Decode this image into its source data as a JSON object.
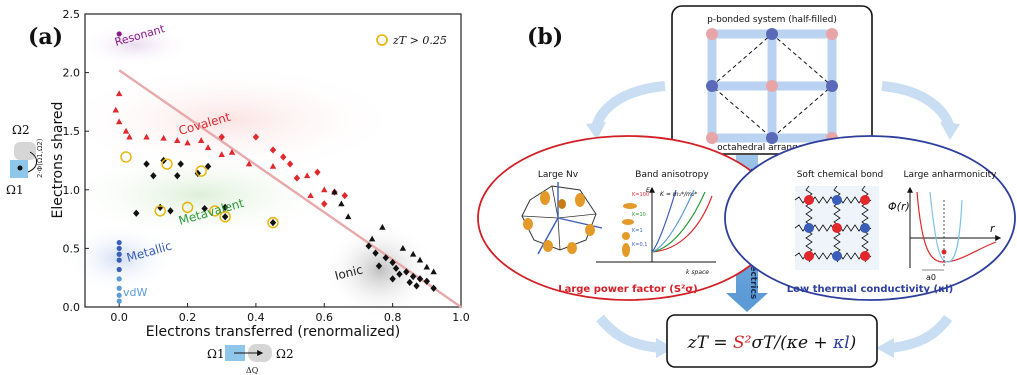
{
  "panel_a": {
    "label": "(a)",
    "legend": "zT > 0.25",
    "region_labels": {
      "resonant": "Resonant",
      "covalent": "Covalent",
      "metavalent": "Metavalent",
      "metallic": "Metallic",
      "vdw": "vdW",
      "ionic": "Ionic"
    },
    "region_colors": {
      "resonant": "#8b1a8b",
      "covalent": "#e0282d",
      "metavalent": "#2e9a3a",
      "metallic": "#3a5db8",
      "vdw": "#5b9bd5",
      "ionic": "#222222"
    },
    "side_axis": {
      "omega_top": "Ω2",
      "omega_bottom": "Ω1",
      "formula": "2·Φ(Ω1,Ω2)",
      "omega_left": "Ω1",
      "omega_right": "Ω2",
      "delta": "ΔQ"
    },
    "chart_data": {
      "type": "scatter",
      "xlabel": "Electrons transferred (renormalized)",
      "ylabel": "Electrons shared",
      "xlim": [
        -0.1,
        1.0
      ],
      "ylim": [
        0.0,
        2.5
      ],
      "xticks": [
        "0.0",
        "0.2",
        "0.4",
        "0.6",
        "0.8",
        "1.0"
      ],
      "yticks": [
        "0.0",
        "0.5",
        "1.0",
        "1.5",
        "2.0",
        "2.5"
      ],
      "trend_line": [
        [
          0.0,
          2.02
        ],
        [
          1.0,
          0.0
        ]
      ],
      "series": [
        {
          "group": "resonant",
          "marker": "circle",
          "color": "#8b1a8b",
          "points": [
            [
              0.0,
              2.33
            ]
          ]
        },
        {
          "group": "covalent",
          "marker": "triangle",
          "color": "#e0282d",
          "points": [
            [
              0.0,
              1.82
            ],
            [
              -0.01,
              1.68
            ],
            [
              0.0,
              1.58
            ],
            [
              0.02,
              1.5
            ],
            [
              0.03,
              1.45
            ],
            [
              0.08,
              1.45
            ],
            [
              0.13,
              1.44
            ],
            [
              0.17,
              1.42
            ],
            [
              0.2,
              1.4
            ],
            [
              0.24,
              1.42
            ],
            [
              0.26,
              1.36
            ],
            [
              0.3,
              1.3
            ],
            [
              0.33,
              1.32
            ],
            [
              0.38,
              1.22
            ],
            [
              0.45,
              1.2
            ],
            [
              0.55,
              1.12
            ],
            [
              0.6,
              1.0
            ],
            [
              0.56,
              0.95
            ]
          ]
        },
        {
          "group": "covalent",
          "marker": "diamond",
          "color": "#e0282d",
          "points": [
            [
              0.3,
              1.45
            ],
            [
              0.4,
              1.45
            ],
            [
              0.45,
              1.34
            ],
            [
              0.48,
              1.28
            ],
            [
              0.5,
              1.22
            ],
            [
              0.52,
              1.1
            ],
            [
              0.58,
              1.15
            ],
            [
              0.63,
              0.98
            ],
            [
              0.6,
              0.88
            ],
            [
              0.66,
              0.95
            ]
          ]
        },
        {
          "group": "metavalent",
          "marker": "diamond",
          "color": "#111111",
          "points": [
            [
              0.08,
              1.22
            ],
            [
              0.13,
              1.25
            ],
            [
              0.18,
              1.22
            ],
            [
              0.1,
              1.12
            ],
            [
              0.17,
              1.12
            ],
            [
              0.23,
              1.14
            ],
            [
              0.26,
              1.2
            ],
            [
              0.12,
              0.85
            ],
            [
              0.15,
              0.82
            ],
            [
              0.25,
              0.84
            ],
            [
              0.31,
              0.85
            ],
            [
              0.31,
              0.77
            ],
            [
              0.45,
              0.72
            ],
            [
              0.05,
              0.8
            ]
          ]
        },
        {
          "group": "metallic",
          "marker": "circle",
          "color": "#3a5db8",
          "points": [
            [
              0.0,
              0.55
            ],
            [
              0.0,
              0.5
            ],
            [
              0.0,
              0.45
            ],
            [
              0.0,
              0.4
            ],
            [
              0.0,
              0.32
            ]
          ]
        },
        {
          "group": "vdw",
          "marker": "circle",
          "color": "#5b9bd5",
          "points": [
            [
              0.0,
              0.24
            ],
            [
              0.0,
              0.16
            ],
            [
              0.0,
              0.1
            ],
            [
              0.0,
              0.05
            ]
          ]
        },
        {
          "group": "ionic",
          "marker": "triangle",
          "color": "#111111",
          "points": [
            [
              0.63,
              0.98
            ],
            [
              0.65,
              0.88
            ],
            [
              0.67,
              0.77
            ],
            [
              0.77,
              0.68
            ],
            [
              0.74,
              0.58
            ],
            [
              0.83,
              0.5
            ],
            [
              0.86,
              0.45
            ],
            [
              0.88,
              0.4
            ],
            [
              0.9,
              0.34
            ],
            [
              0.92,
              0.3
            ]
          ]
        },
        {
          "group": "ionic",
          "marker": "diamond",
          "color": "#111111",
          "points": [
            [
              0.73,
              0.52
            ],
            [
              0.75,
              0.46
            ],
            [
              0.78,
              0.42
            ],
            [
              0.8,
              0.38
            ],
            [
              0.81,
              0.33
            ],
            [
              0.84,
              0.3
            ],
            [
              0.86,
              0.26
            ],
            [
              0.88,
              0.24
            ],
            [
              0.9,
              0.22
            ],
            [
              0.82,
              0.28
            ],
            [
              0.85,
              0.21
            ],
            [
              0.87,
              0.18
            ],
            [
              0.92,
              0.16
            ],
            [
              0.8,
              0.24
            ],
            [
              0.76,
              0.35
            ]
          ]
        }
      ],
      "highlight_rings": [
        [
          0.02,
          1.28
        ],
        [
          0.14,
          1.22
        ],
        [
          0.24,
          1.16
        ],
        [
          0.2,
          0.85
        ],
        [
          0.28,
          0.82
        ],
        [
          0.31,
          0.77
        ],
        [
          0.45,
          0.72
        ],
        [
          0.12,
          0.82
        ]
      ]
    }
  },
  "panel_b": {
    "label": "(b)",
    "top_title": "p-bonded system (half-filled)",
    "top_caption": "octahedral arrangement",
    "center_arrow_text": "Design of thermoelectrics",
    "left": {
      "title1": "Large Nv",
      "title2": "Band anisotropy",
      "caption": "Large power factor (S²σ)",
      "axis_k": "k space",
      "axis_e": "E",
      "formula": "K = m₁*/m₂*",
      "k_labels": [
        "K=100",
        "K=10",
        "K=1",
        "K=0.1"
      ]
    },
    "right": {
      "title1": "Soft chemical bond",
      "title2": "Large anharmonicity",
      "caption": "Low thermal conductivity (κl)",
      "phi": "Φ(r)",
      "r": "r",
      "a0": "a0"
    },
    "equation": {
      "zt": "zT = ",
      "s2": "S²",
      "mid": "σT/(κe + ",
      "kl": "κl",
      "end": ")"
    }
  }
}
